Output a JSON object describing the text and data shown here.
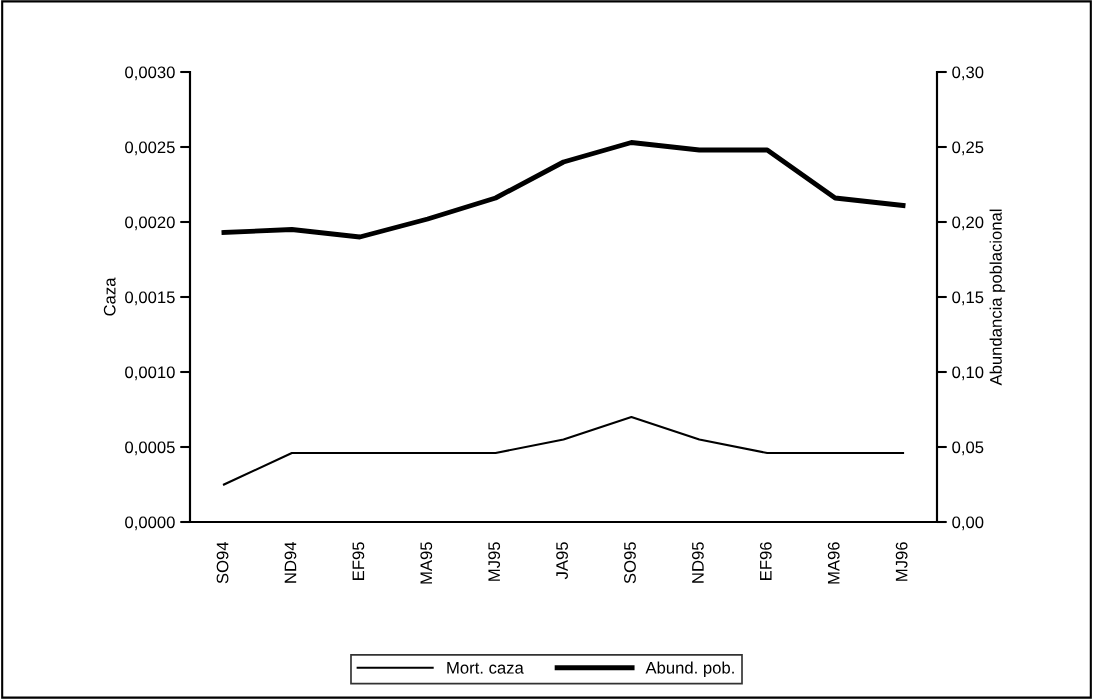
{
  "chart_data": {
    "type": "line",
    "ylabel": "Caza",
    "y2label": "Abundancia poblacional",
    "categories": [
      "SO94",
      "ND94",
      "EF95",
      "MA95",
      "MJ95",
      "JA95",
      "SO95",
      "ND95",
      "EF96",
      "MA96",
      "MJ96"
    ],
    "series": [
      {
        "name": "Mort. caza",
        "color": "#000000",
        "values": [
          0.00025,
          0.00046,
          0.00046,
          0.00046,
          0.00046,
          0.00055,
          0.0007,
          0.00055,
          0.00046,
          0.00046,
          0.00046
        ]
      },
      {
        "name": "Abund. pob.",
        "color": "#000000",
        "axis": "y2",
        "values": [
          0.193,
          0.195,
          0.19,
          0.202,
          0.216,
          0.24,
          0.253,
          0.248,
          0.248,
          0.216,
          0.211
        ]
      }
    ],
    "ylim": [
      0,
      0.003
    ],
    "yticks": [
      {
        "value": 0,
        "label": "0,0000"
      },
      {
        "value": 0.0005,
        "label": "0,0005"
      },
      {
        "value": 0.001,
        "label": "0,0010"
      },
      {
        "value": 0.0015,
        "label": "0,0015"
      },
      {
        "value": 0.002,
        "label": "0,0020"
      },
      {
        "value": 0.0025,
        "label": "0,0025"
      },
      {
        "value": 0.003,
        "label": "0,0030"
      }
    ],
    "y2lim": [
      0,
      0.3
    ],
    "y2ticks": [
      {
        "value": 0,
        "label": "0,00"
      },
      {
        "value": 0.05,
        "label": "0,05"
      },
      {
        "value": 0.1,
        "label": "0,10"
      },
      {
        "value": 0.15,
        "label": "0,15"
      },
      {
        "value": 0.2,
        "label": "0,20"
      },
      {
        "value": 0.25,
        "label": "0,25"
      },
      {
        "value": 0.3,
        "label": "0,30"
      }
    ],
    "grid": false,
    "legend": "bottom",
    "marker": "none",
    "line_style": "solid"
  }
}
